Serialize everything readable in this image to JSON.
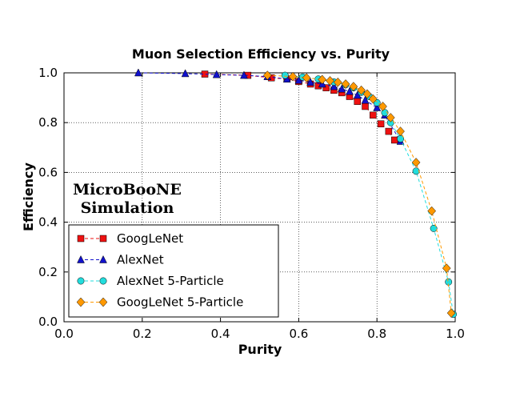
{
  "chart_data": {
    "type": "line",
    "title": "Muon Selection Efficiency vs. Purity",
    "xlabel": "Purity",
    "ylabel": "Efficiency",
    "xlim": [
      0.0,
      1.0
    ],
    "ylim": [
      0.0,
      1.0
    ],
    "xticks": [
      "0.0",
      "0.2",
      "0.4",
      "0.6",
      "0.8",
      "1.0"
    ],
    "yticks": [
      "0.0",
      "0.2",
      "0.4",
      "0.6",
      "0.8",
      "1.0"
    ],
    "grid": true,
    "legend_position": "lower-left",
    "annotation": [
      "MicroBooNE",
      "Simulation"
    ],
    "series": [
      {
        "name": "GoogLeNet",
        "color": "#ee1111",
        "marker": "square",
        "x": [
          0.36,
          0.47,
          0.53,
          0.57,
          0.6,
          0.63,
          0.65,
          0.67,
          0.69,
          0.71,
          0.73,
          0.75,
          0.77,
          0.79,
          0.81,
          0.83,
          0.845
        ],
        "y": [
          0.995,
          0.99,
          0.98,
          0.975,
          0.965,
          0.955,
          0.948,
          0.94,
          0.93,
          0.92,
          0.905,
          0.885,
          0.865,
          0.83,
          0.795,
          0.765,
          0.73
        ]
      },
      {
        "name": "AlexNet",
        "color": "#1111cc",
        "marker": "triangle",
        "x": [
          0.19,
          0.31,
          0.39,
          0.46,
          0.52,
          0.57,
          0.6,
          0.63,
          0.66,
          0.69,
          0.71,
          0.73,
          0.75,
          0.77,
          0.8,
          0.82,
          0.86
        ],
        "y": [
          1.0,
          0.997,
          0.993,
          0.99,
          0.985,
          0.975,
          0.97,
          0.962,
          0.955,
          0.945,
          0.935,
          0.925,
          0.91,
          0.89,
          0.86,
          0.83,
          0.725
        ]
      },
      {
        "name": "AlexNet 5-Particle",
        "color": "#22dddd",
        "marker": "circle",
        "x": [
          0.565,
          0.61,
          0.65,
          0.69,
          0.72,
          0.74,
          0.76,
          0.78,
          0.8,
          0.82,
          0.835,
          0.86,
          0.9,
          0.945,
          0.983,
          0.995
        ],
        "y": [
          0.99,
          0.983,
          0.975,
          0.963,
          0.952,
          0.94,
          0.922,
          0.905,
          0.88,
          0.84,
          0.8,
          0.735,
          0.605,
          0.375,
          0.16,
          0.03
        ]
      },
      {
        "name": "GoogLeNet 5-Particle",
        "color": "#ff9900",
        "marker": "diamond",
        "x": [
          0.52,
          0.585,
          0.62,
          0.66,
          0.68,
          0.7,
          0.72,
          0.74,
          0.76,
          0.775,
          0.79,
          0.815,
          0.835,
          0.86,
          0.9,
          0.94,
          0.978,
          0.99
        ],
        "y": [
          0.99,
          0.985,
          0.98,
          0.973,
          0.968,
          0.962,
          0.955,
          0.945,
          0.93,
          0.915,
          0.895,
          0.865,
          0.82,
          0.765,
          0.64,
          0.445,
          0.215,
          0.035
        ]
      }
    ]
  }
}
